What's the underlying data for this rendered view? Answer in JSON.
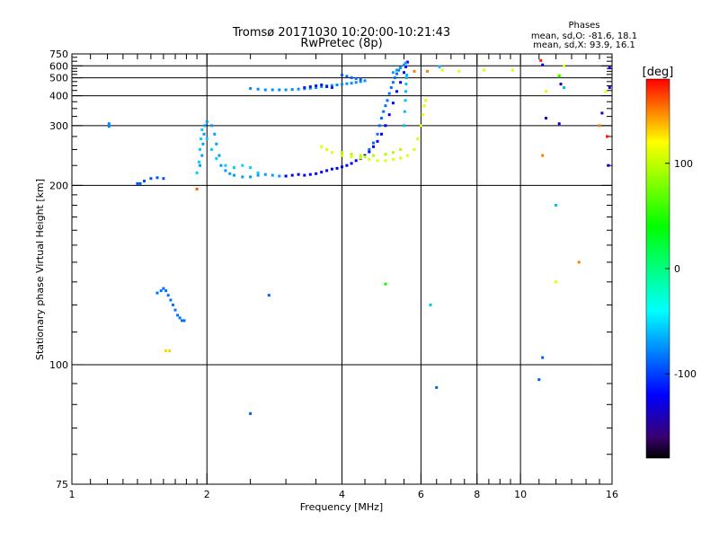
{
  "chart_data": {
    "type": "scatter",
    "title": "Tromsø 20171030 10:20:00-10:21:43",
    "subtitle": "RwPretec (8p)",
    "xlabel": "Frequency [MHz]",
    "ylabel": "Stationary phase Virtual Height [km]",
    "x_scale": "log",
    "y_scale": "reciprocal",
    "xlim": [
      1,
      16
    ],
    "ylim": [
      75,
      750
    ],
    "x_ticks": [
      1,
      2,
      4,
      6,
      8,
      10,
      16
    ],
    "x_tick_labels": [
      "1",
      "2",
      "4",
      "6",
      "8",
      "10",
      "16"
    ],
    "x_major_gridlines": [
      2,
      4,
      6,
      8,
      10
    ],
    "x_minor_ticks": [
      1.1,
      1.2,
      1.3,
      1.4,
      1.5,
      1.6,
      1.7,
      1.8,
      1.9,
      2.5,
      3,
      3.5,
      4.5,
      5,
      5.5,
      6.5,
      7,
      7.5,
      8.5,
      9,
      9.5,
      11,
      12,
      13,
      14,
      15
    ],
    "y_ticks": [
      75,
      100,
      200,
      300,
      400,
      500,
      600,
      750
    ],
    "y_tick_labels": [
      "75",
      "100",
      "200",
      "300",
      "400",
      "500",
      "600",
      "750"
    ],
    "y_minor_ticks": [
      80,
      85,
      90,
      95,
      110,
      120,
      130,
      140,
      150,
      160,
      170,
      180,
      190,
      225,
      250,
      275,
      325,
      350,
      375,
      425,
      450,
      475,
      525,
      550,
      575,
      650,
      700
    ],
    "grid": true,
    "phase_info": {
      "label": "Phases",
      "o_line": "mean, sd,O: -81.6, 18.1",
      "x_line": "mean, sd,X:  93.9, 16.1"
    },
    "colorbar": {
      "label": "[deg]",
      "range": [
        -180,
        180
      ],
      "ticks": [
        100,
        0,
        -100
      ],
      "tick_labels": [
        "100",
        "0",
        "-100"
      ],
      "stops": [
        {
          "value": 180,
          "color": "#ff0000"
        },
        {
          "value": 120,
          "color": "#ffff00"
        },
        {
          "value": 40,
          "color": "#00ff00"
        },
        {
          "value": -40,
          "color": "#00ffff"
        },
        {
          "value": -120,
          "color": "#0000ff"
        },
        {
          "value": -160,
          "color": "#3a0070"
        },
        {
          "value": -180,
          "color": "#000000"
        }
      ]
    },
    "series": [
      {
        "phase": -95,
        "points": [
          [
            1.4,
            202
          ],
          [
            1.42,
            202
          ],
          [
            1.45,
            205
          ],
          [
            1.5,
            208
          ],
          [
            1.55,
            209
          ],
          [
            1.6,
            208
          ]
        ]
      },
      {
        "phase": -70,
        "points": [
          [
            1.93,
            225
          ],
          [
            1.95,
            240
          ],
          [
            1.96,
            260
          ],
          [
            1.97,
            280
          ],
          [
            1.98,
            300
          ],
          [
            2.0,
            310
          ],
          [
            2.05,
            300
          ],
          [
            2.08,
            280
          ],
          [
            2.1,
            260
          ],
          [
            2.13,
            240
          ],
          [
            2.15,
            225
          ],
          [
            2.2,
            218
          ],
          [
            2.25,
            214
          ],
          [
            2.3,
            212
          ],
          [
            2.4,
            210
          ],
          [
            2.5,
            210
          ],
          [
            2.6,
            212
          ],
          [
            2.7,
            213
          ],
          [
            2.8,
            212
          ],
          [
            2.9,
            211
          ],
          [
            3.0,
            211
          ]
        ]
      },
      {
        "phase": -55,
        "points": [
          [
            1.9,
            215
          ],
          [
            1.92,
            230
          ],
          [
            1.93,
            250
          ],
          [
            1.94,
            270
          ],
          [
            1.95,
            290
          ],
          [
            2.0,
            270
          ],
          [
            2.05,
            250
          ],
          [
            2.1,
            235
          ],
          [
            2.2,
            225
          ],
          [
            2.3,
            222
          ],
          [
            2.4,
            225
          ],
          [
            2.5,
            222
          ],
          [
            2.6,
            215
          ]
        ]
      },
      {
        "phase": -120,
        "points": [
          [
            3.0,
            211
          ],
          [
            3.1,
            212
          ],
          [
            3.2,
            213
          ],
          [
            3.3,
            212
          ],
          [
            3.4,
            213
          ],
          [
            3.5,
            214
          ],
          [
            3.6,
            216
          ],
          [
            3.7,
            218
          ],
          [
            3.8,
            220
          ],
          [
            3.9,
            221
          ],
          [
            4.0,
            223
          ],
          [
            4.1,
            225
          ],
          [
            4.2,
            228
          ],
          [
            4.3,
            232
          ],
          [
            4.4,
            235
          ],
          [
            4.5,
            240
          ],
          [
            4.6,
            246
          ],
          [
            4.7,
            255
          ],
          [
            4.8,
            265
          ],
          [
            4.9,
            280
          ],
          [
            5.0,
            300
          ],
          [
            5.1,
            330
          ],
          [
            5.2,
            370
          ],
          [
            5.3,
            420
          ],
          [
            5.4,
            470
          ],
          [
            5.5,
            540
          ],
          [
            5.55,
            590
          ],
          [
            5.6,
            640
          ]
        ]
      },
      {
        "phase": -85,
        "points": [
          [
            4.6,
            250
          ],
          [
            4.7,
            262
          ],
          [
            4.8,
            280
          ],
          [
            4.85,
            300
          ],
          [
            4.9,
            320
          ],
          [
            4.95,
            340
          ],
          [
            5.0,
            360
          ],
          [
            5.05,
            380
          ],
          [
            5.1,
            410
          ],
          [
            5.15,
            440
          ],
          [
            5.2,
            470
          ],
          [
            5.25,
            500
          ],
          [
            5.3,
            530
          ],
          [
            5.35,
            560
          ],
          [
            5.4,
            580
          ]
        ]
      },
      {
        "phase": -60,
        "points": [
          [
            5.5,
            300
          ],
          [
            5.52,
            340
          ],
          [
            5.54,
            380
          ],
          [
            5.55,
            420
          ],
          [
            5.56,
            460
          ],
          [
            5.57,
            500
          ],
          [
            5.58,
            520
          ]
        ]
      },
      {
        "phase": 110,
        "points": [
          [
            3.6,
            255
          ],
          [
            3.7,
            250
          ],
          [
            3.8,
            245
          ],
          [
            4.0,
            240
          ],
          [
            4.2,
            238
          ],
          [
            4.4,
            236
          ],
          [
            4.6,
            234
          ],
          [
            4.8,
            232
          ],
          [
            5.0,
            232
          ],
          [
            5.2,
            234
          ],
          [
            5.4,
            236
          ],
          [
            5.6,
            240
          ],
          [
            5.8,
            250
          ],
          [
            5.9,
            270
          ],
          [
            6.0,
            300
          ],
          [
            6.05,
            330
          ],
          [
            6.1,
            360
          ],
          [
            6.15,
            380
          ]
        ]
      },
      {
        "phase": 95,
        "points": [
          [
            4.0,
            245
          ],
          [
            4.2,
            242
          ],
          [
            4.4,
            240
          ],
          [
            4.5,
            238
          ],
          [
            4.7,
            240
          ],
          [
            5.0,
            242
          ],
          [
            5.2,
            245
          ],
          [
            5.4,
            250
          ]
        ]
      },
      {
        "phase": -75,
        "points": [
          [
            2.5,
            435
          ],
          [
            2.6,
            432
          ],
          [
            2.7,
            428
          ],
          [
            2.8,
            428
          ],
          [
            2.9,
            428
          ],
          [
            3.0,
            428
          ],
          [
            3.1,
            430
          ],
          [
            3.2,
            432
          ],
          [
            3.3,
            434
          ],
          [
            3.4,
            436
          ],
          [
            3.5,
            440
          ],
          [
            3.6,
            445
          ],
          [
            3.7,
            450
          ],
          [
            3.8,
            452
          ],
          [
            3.9,
            455
          ],
          [
            4.0,
            458
          ],
          [
            4.1,
            462
          ],
          [
            4.2,
            465
          ],
          [
            4.3,
            470
          ],
          [
            4.4,
            475
          ],
          [
            4.5,
            480
          ]
        ]
      },
      {
        "phase": -110,
        "points": [
          [
            3.3,
            440
          ],
          [
            3.4,
            445
          ],
          [
            3.5,
            450
          ],
          [
            3.6,
            455
          ],
          [
            3.7,
            445
          ],
          [
            3.8,
            440
          ]
        ]
      },
      {
        "phase": -90,
        "points": [
          [
            4.0,
            520
          ],
          [
            4.1,
            510
          ],
          [
            4.2,
            500
          ],
          [
            4.3,
            495
          ],
          [
            4.4,
            490
          ]
        ]
      },
      {
        "phase": -70,
        "points": [
          [
            5.2,
            540
          ],
          [
            5.3,
            560
          ],
          [
            5.4,
            580
          ],
          [
            5.5,
            610
          ],
          [
            5.55,
            630
          ]
        ]
      },
      {
        "phase": -85,
        "points": [
          [
            1.55,
            125
          ],
          [
            1.58,
            126
          ],
          [
            1.6,
            127
          ],
          [
            1.62,
            126
          ],
          [
            1.64,
            124
          ],
          [
            1.66,
            122
          ],
          [
            1.68,
            120
          ],
          [
            1.7,
            118
          ],
          [
            1.72,
            116
          ],
          [
            1.74,
            115
          ],
          [
            1.76,
            114
          ],
          [
            1.78,
            114
          ]
        ]
      },
      {
        "phase": 130,
        "points": [
          [
            1.62,
            104
          ],
          [
            1.65,
            104
          ]
        ]
      },
      {
        "phase": -80,
        "points": [
          [
            1.21,
            305
          ],
          [
            1.21,
            298
          ]
        ]
      },
      {
        "phase": 160,
        "points": [
          [
            1.9,
            196
          ]
        ]
      },
      {
        "phase": -90,
        "points": [
          [
            2.5,
            88
          ],
          [
            2.75,
            124
          ],
          [
            6.5,
            94
          ],
          [
            11.0,
            96
          ],
          [
            11.2,
            102
          ]
        ]
      },
      {
        "phase": -60,
        "points": [
          [
            6.3,
            120
          ],
          [
            6.6,
            590
          ],
          [
            12.0,
            180
          ],
          [
            12.5,
            440
          ]
        ]
      },
      {
        "phase": 150,
        "points": [
          [
            5.8,
            550
          ],
          [
            6.2,
            550
          ],
          [
            11.2,
            240
          ],
          [
            13.5,
            140
          ],
          [
            15.0,
            300
          ]
        ]
      },
      {
        "phase": 110,
        "points": [
          [
            6.7,
            560
          ],
          [
            7.3,
            550
          ],
          [
            8.3,
            560
          ],
          [
            9.6,
            560
          ],
          [
            11.4,
            420
          ],
          [
            12.0,
            130
          ],
          [
            12.2,
            520
          ],
          [
            12.5,
            600
          ],
          [
            15.5,
            420
          ]
        ]
      },
      {
        "phase": 40,
        "points": [
          [
            5.0,
            129
          ],
          [
            12.2,
            510
          ]
        ]
      },
      {
        "phase": 175,
        "points": [
          [
            11.1,
            660
          ],
          [
            15.6,
            275
          ]
        ]
      },
      {
        "phase": -130,
        "points": [
          [
            11.2,
            610
          ],
          [
            12.3,
            460
          ],
          [
            11.4,
            320
          ],
          [
            12.2,
            305
          ],
          [
            15.2,
            335
          ],
          [
            15.7,
            225
          ],
          [
            15.8,
            440
          ],
          [
            15.8,
            580
          ]
        ]
      }
    ]
  }
}
